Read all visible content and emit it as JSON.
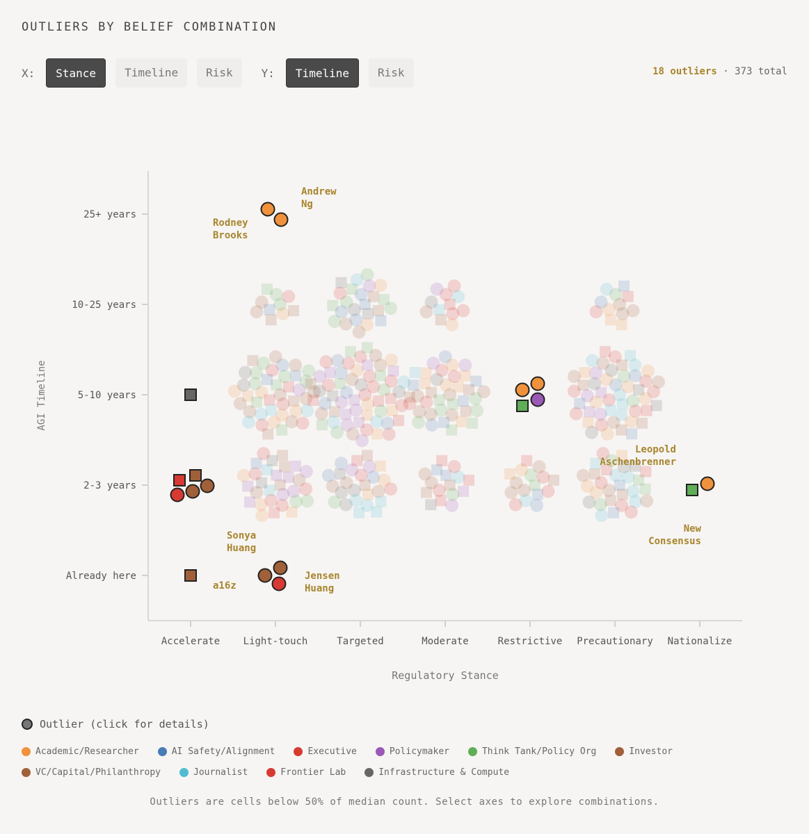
{
  "header": {
    "title": "OUTLIERS BY BELIEF COMBINATION",
    "x_label": "X:",
    "y_label": "Y:",
    "x_options": [
      {
        "label": "Stance",
        "active": true
      },
      {
        "label": "Timeline",
        "active": false
      },
      {
        "label": "Risk",
        "active": false
      }
    ],
    "y_options": [
      {
        "label": "Timeline",
        "active": true
      },
      {
        "label": "Risk",
        "active": false
      }
    ],
    "outlier_count": "18 outliers",
    "separator": "·",
    "total_count": "373 total"
  },
  "chart_data": {
    "type": "scatter",
    "xlabel": "Regulatory Stance",
    "ylabel": "AGI Timeline",
    "x_categories": [
      "Accelerate",
      "Light-touch",
      "Targeted",
      "Moderate",
      "Restrictive",
      "Precautionary",
      "Nationalize"
    ],
    "y_categories": [
      "Already here",
      "2-3 years",
      "5-10 years",
      "10-25 years",
      "25+ years"
    ],
    "grid": false,
    "colors": {
      "Academic/Researcher": "#f0923c",
      "AI Safety/Alignment": "#4a7cb5",
      "Executive": "#d63a32",
      "Policymaker": "#9b59b6",
      "Think Tank/Policy Org": "#5fae57",
      "Investor": "#a0603a",
      "VC/Capital/Philanthropy": "#a0603a",
      "Journalist": "#4fbcd3",
      "Frontier Lab": "#d63a32",
      "Infrastructure & Compute": "#666666"
    },
    "outliers": [
      {
        "x": "Light-touch",
        "y": "25+ years",
        "category": "Academic/Researcher",
        "shape": "circle"
      },
      {
        "x": "Light-touch",
        "y": "25+ years",
        "category": "Academic/Researcher",
        "shape": "circle"
      },
      {
        "x": "Accelerate",
        "y": "5-10 years",
        "category": "Infrastructure & Compute",
        "shape": "square"
      },
      {
        "x": "Accelerate",
        "y": "2-3 years",
        "category": "Executive",
        "shape": "square"
      },
      {
        "x": "Accelerate",
        "y": "2-3 years",
        "category": "Investor",
        "shape": "square"
      },
      {
        "x": "Accelerate",
        "y": "2-3 years",
        "category": "Executive",
        "shape": "circle"
      },
      {
        "x": "Accelerate",
        "y": "2-3 years",
        "category": "Investor",
        "shape": "circle"
      },
      {
        "x": "Accelerate",
        "y": "2-3 years",
        "category": "Investor",
        "shape": "circle"
      },
      {
        "x": "Accelerate",
        "y": "Already here",
        "category": "Investor",
        "shape": "square"
      },
      {
        "x": "Light-touch",
        "y": "Already here",
        "category": "Investor",
        "shape": "circle"
      },
      {
        "x": "Light-touch",
        "y": "Already here",
        "category": "Investor",
        "shape": "circle"
      },
      {
        "x": "Light-touch",
        "y": "Already here",
        "category": "Executive",
        "shape": "circle"
      },
      {
        "x": "Restrictive",
        "y": "5-10 years",
        "category": "Academic/Researcher",
        "shape": "circle"
      },
      {
        "x": "Restrictive",
        "y": "5-10 years",
        "category": "Academic/Researcher",
        "shape": "circle"
      },
      {
        "x": "Restrictive",
        "y": "5-10 years",
        "category": "Think Tank/Policy Org",
        "shape": "square"
      },
      {
        "x": "Restrictive",
        "y": "5-10 years",
        "category": "Policymaker",
        "shape": "circle"
      },
      {
        "x": "Nationalize",
        "y": "2-3 years",
        "category": "Think Tank/Policy Org",
        "shape": "square"
      },
      {
        "x": "Nationalize",
        "y": "2-3 years",
        "category": "Academic/Researcher",
        "shape": "circle"
      }
    ],
    "annotations": [
      {
        "lines": [
          "Andrew",
          "Ng"
        ]
      },
      {
        "lines": [
          "Rodney",
          "Brooks"
        ]
      },
      {
        "lines": [
          "Sonya",
          "Huang"
        ]
      },
      {
        "lines": [
          "a16z"
        ]
      },
      {
        "lines": [
          "Jensen",
          "Huang"
        ]
      },
      {
        "lines": [
          "Leopold",
          "Aschenbrenner"
        ]
      },
      {
        "lines": [
          "New",
          "Consensus"
        ]
      }
    ],
    "background_clusters": [
      {
        "x": "Light-touch",
        "y": "10-25 years",
        "count": 10
      },
      {
        "x": "Targeted",
        "y": "10-25 years",
        "count": 24
      },
      {
        "x": "Moderate",
        "y": "10-25 years",
        "count": 12
      },
      {
        "x": "Precautionary",
        "y": "10-25 years",
        "count": 12
      },
      {
        "x": "Light-touch",
        "y": "5-10 years",
        "count": 42
      },
      {
        "x": "Targeted",
        "y": "5-10 years",
        "count": 60
      },
      {
        "x": "Moderate",
        "y": "5-10 years",
        "count": 38
      },
      {
        "x": "Precautionary",
        "y": "5-10 years",
        "count": 50
      },
      {
        "x": "Light-touch",
        "y": "2-3 years",
        "count": 30
      },
      {
        "x": "Targeted",
        "y": "2-3 years",
        "count": 26
      },
      {
        "x": "Moderate",
        "y": "2-3 years",
        "count": 16
      },
      {
        "x": "Restrictive",
        "y": "2-3 years",
        "count": 16
      },
      {
        "x": "Precautionary",
        "y": "2-3 years",
        "count": 30
      }
    ]
  },
  "legend": {
    "outlier_label": "Outlier (click for details)",
    "categories": [
      {
        "name": "Academic/Researcher",
        "color": "#f0923c"
      },
      {
        "name": "AI Safety/Alignment",
        "color": "#4a7cb5"
      },
      {
        "name": "Executive",
        "color": "#d63a32"
      },
      {
        "name": "Policymaker",
        "color": "#9b59b6"
      },
      {
        "name": "Think Tank/Policy Org",
        "color": "#5fae57"
      },
      {
        "name": "Investor",
        "color": "#a0603a"
      },
      {
        "name": "VC/Capital/Philanthropy",
        "color": "#a0603a"
      },
      {
        "name": "Journalist",
        "color": "#4fbcd3"
      },
      {
        "name": "Frontier Lab",
        "color": "#d63a32"
      },
      {
        "name": "Infrastructure & Compute",
        "color": "#666666"
      }
    ]
  },
  "footnote": "Outliers are cells below 50% of median count. Select axes to explore combinations."
}
